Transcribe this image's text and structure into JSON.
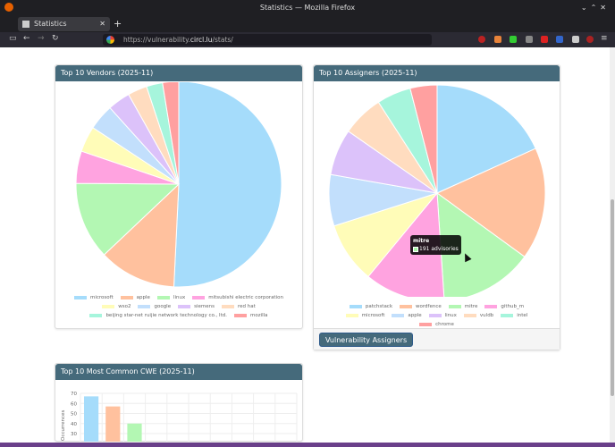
{
  "window": {
    "title": "Statistics — Mozilla Firefox",
    "tab": "Statistics",
    "url_prefix": "https://vulnerability.",
    "url_domain": "circl.lu",
    "url_path": "/stats/"
  },
  "vendors": {
    "title": "Top 10 Vendors (2025-11)",
    "chart_data": {
      "type": "pie",
      "labels": [
        "microsoft",
        "apple",
        "linux",
        "mitsubishi electric corporation",
        "wso2",
        "google",
        "siemens",
        "red hat",
        "beijing star-net ruijie network technology co., ltd.",
        "mozilla"
      ],
      "values": [
        50,
        12,
        12,
        5,
        4,
        4,
        3.5,
        3,
        2.5,
        2.5
      ],
      "colors": [
        "#a5dcfb",
        "#ffc19e",
        "#b3f7b3",
        "#ffa3e0",
        "#fffcb8",
        "#c2dffc",
        "#dcc2fa",
        "#ffdcbf",
        "#a6f5dc",
        "#ffa0a0"
      ],
      "legend": "bottom"
    }
  },
  "assigners": {
    "title": "Top 10 Assigners (2025-11)",
    "button": "Vulnerability Assigners",
    "tooltip": {
      "label": "mitre",
      "value": "191 advisories"
    },
    "chart_data": {
      "type": "pie",
      "labels": [
        "patchstack",
        "wordfence",
        "mitre",
        "github_m",
        "microsoft",
        "apple",
        "linux",
        "vuldb",
        "intel",
        "chrome"
      ],
      "values": [
        250,
        230,
        191,
        165,
        125,
        105,
        95,
        85,
        70,
        55
      ],
      "colors": [
        "#a5dcfb",
        "#ffc19e",
        "#b3f7b3",
        "#ffa3e0",
        "#fffcb8",
        "#c2dffc",
        "#dcc2fa",
        "#ffdcbf",
        "#a6f5dc",
        "#ffa0a0"
      ],
      "legend": "bottom"
    }
  },
  "cwe": {
    "title": "Top 10 Most Common CWE (2025-11)",
    "chart_data": {
      "type": "bar",
      "ylabel": "Occurrences",
      "yticks": [
        30,
        40,
        50,
        60,
        70
      ],
      "ylim": [
        0,
        70
      ],
      "values": [
        67,
        57,
        40
      ],
      "colors": [
        "#a5dcfb",
        "#ffc19e",
        "#b3f7b3"
      ],
      "grid": true
    }
  }
}
